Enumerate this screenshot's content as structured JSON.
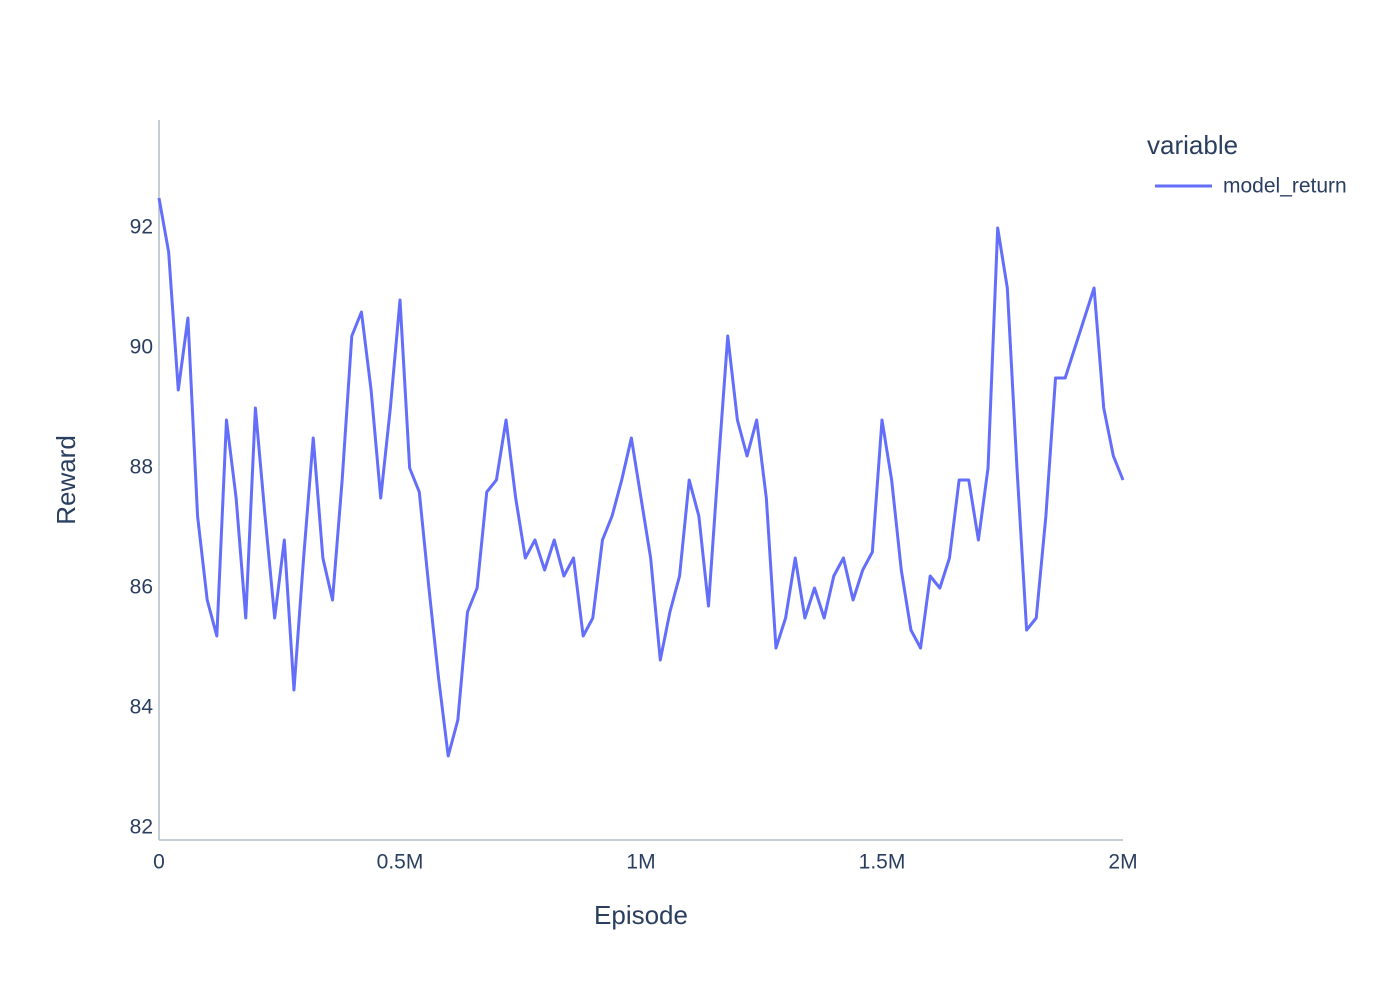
{
  "chart_data": {
    "type": "line",
    "x_label": "Episode",
    "y_label": "Reward",
    "legend_title": "variable",
    "legend_position": "right",
    "x": [
      0,
      20000,
      40000,
      60000,
      80000,
      100000,
      120000,
      140000,
      160000,
      180000,
      200000,
      220000,
      240000,
      260000,
      280000,
      300000,
      320000,
      340000,
      360000,
      380000,
      400000,
      420000,
      440000,
      460000,
      480000,
      500000,
      520000,
      540000,
      560000,
      580000,
      600000,
      620000,
      640000,
      660000,
      680000,
      700000,
      720000,
      740000,
      760000,
      780000,
      800000,
      820000,
      840000,
      860000,
      880000,
      900000,
      920000,
      940000,
      960000,
      980000,
      1000000,
      1020000,
      1040000,
      1060000,
      1080000,
      1100000,
      1120000,
      1140000,
      1160000,
      1180000,
      1200000,
      1220000,
      1240000,
      1260000,
      1280000,
      1300000,
      1320000,
      1340000,
      1360000,
      1380000,
      1400000,
      1420000,
      1440000,
      1460000,
      1480000,
      1500000,
      1520000,
      1540000,
      1560000,
      1580000,
      1600000,
      1620000,
      1640000,
      1660000,
      1680000,
      1700000,
      1720000,
      1740000,
      1760000,
      1780000,
      1800000,
      1820000,
      1840000,
      1860000,
      1880000,
      1900000,
      1920000,
      1940000,
      1960000,
      1980000,
      2000000
    ],
    "series": [
      {
        "name": "model_return",
        "color": "#636efa",
        "values": [
          92.5,
          91.6,
          89.3,
          90.5,
          87.2,
          85.8,
          85.2,
          88.8,
          87.5,
          85.5,
          89.0,
          87.2,
          85.5,
          86.8,
          84.3,
          86.5,
          88.5,
          86.5,
          85.8,
          87.8,
          90.2,
          90.6,
          89.3,
          87.5,
          89.0,
          90.8,
          88.0,
          87.6,
          86.0,
          84.5,
          83.2,
          83.8,
          85.6,
          86.0,
          87.6,
          87.8,
          88.8,
          87.5,
          86.5,
          86.8,
          86.3,
          86.8,
          86.2,
          86.5,
          85.2,
          85.5,
          86.8,
          87.2,
          87.8,
          88.5,
          87.5,
          86.5,
          84.8,
          85.6,
          86.2,
          87.8,
          87.2,
          85.7,
          88.0,
          90.2,
          88.8,
          88.2,
          88.8,
          87.5,
          85.0,
          85.5,
          86.5,
          85.5,
          86.0,
          85.5,
          86.2,
          86.5,
          85.8,
          86.3,
          86.6,
          88.8,
          87.8,
          86.3,
          85.3,
          85.0,
          86.2,
          86.0,
          86.5,
          87.8,
          87.8,
          86.8,
          88.0,
          92.0,
          91.0,
          88.0,
          85.3,
          85.5,
          87.2,
          89.5,
          89.5,
          90.0,
          90.5,
          91.0,
          89.0,
          88.2,
          87.8
        ]
      }
    ],
    "xlim": [
      0,
      2000000
    ],
    "xticks": [
      0,
      {
        "value": 500000,
        "label": "0.5M"
      },
      {
        "value": 1000000,
        "label": "1M"
      },
      {
        "value": 1500000,
        "label": "1.5M"
      },
      {
        "value": 2000000,
        "label": "2M"
      }
    ],
    "ylim": [
      81.8,
      93.8
    ],
    "yticks": [
      82,
      84,
      86,
      88,
      90,
      92
    ],
    "grid": false
  }
}
